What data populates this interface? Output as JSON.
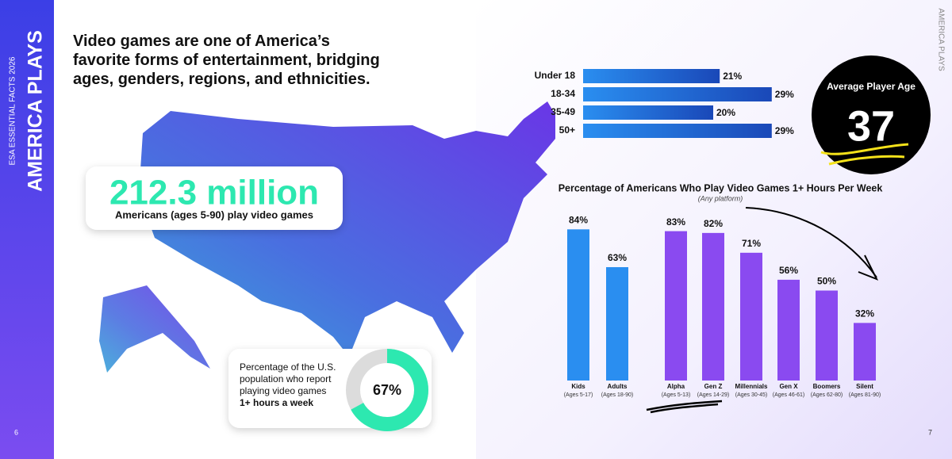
{
  "sidebar": {
    "series": "ESA ESSENTIAL FACTS 2026",
    "title": "AMERICA PLAYS"
  },
  "right_label": "AMERICA PLAYS",
  "headline": "Video games are one of America’s favorite forms of entertainment, bridging ages, genders, regions, and ethnicities.",
  "stat": {
    "value": "212.3 million",
    "label": "Americans (ages 5-90) play video games"
  },
  "average_age": {
    "label": "Average Player Age",
    "value": 37
  },
  "page_numbers": [
    6,
    7
  ],
  "chart_data": [
    {
      "type": "hbar",
      "categories": [
        "Under 18",
        "18-34",
        "35-49",
        "50+"
      ],
      "values": [
        21,
        29,
        20,
        29
      ],
      "value_labels": [
        "21%",
        "29%",
        "20%",
        "29%"
      ],
      "color": "#1f6fd8"
    },
    {
      "type": "bar",
      "title": "Percentage of Americans Who Play Video Games 1+ Hours Per Week",
      "subtitle": "(Any platform)",
      "categories": [
        "Kids",
        "Adults",
        "Alpha",
        "Gen Z",
        "Millennials",
        "Gen X",
        "Boomers",
        "Silent"
      ],
      "sublabels": [
        "(Ages 5-17)",
        "(Ages 18-90)",
        "(Ages 5-13)",
        "(Ages 14-29)",
        "(Ages 30-45)",
        "(Ages 46-61)",
        "(Ages 62-80)",
        "(Ages 81-90)"
      ],
      "values": [
        84,
        63,
        83,
        82,
        71,
        56,
        50,
        32
      ],
      "value_labels": [
        "84%",
        "63%",
        "83%",
        "82%",
        "71%",
        "56%",
        "50%",
        "32%"
      ],
      "colors": [
        "#2a8ef0",
        "#2a8ef0",
        "#8a4af0",
        "#8a4af0",
        "#8a4af0",
        "#8a4af0",
        "#8a4af0",
        "#8a4af0"
      ]
    },
    {
      "type": "donut",
      "title": "Percentage of the U.S. population who report playing video games",
      "emphasis": "1+ hours a week",
      "values": [
        67
      ],
      "value_labels": [
        "67%"
      ],
      "color": "#2de8b0"
    }
  ]
}
